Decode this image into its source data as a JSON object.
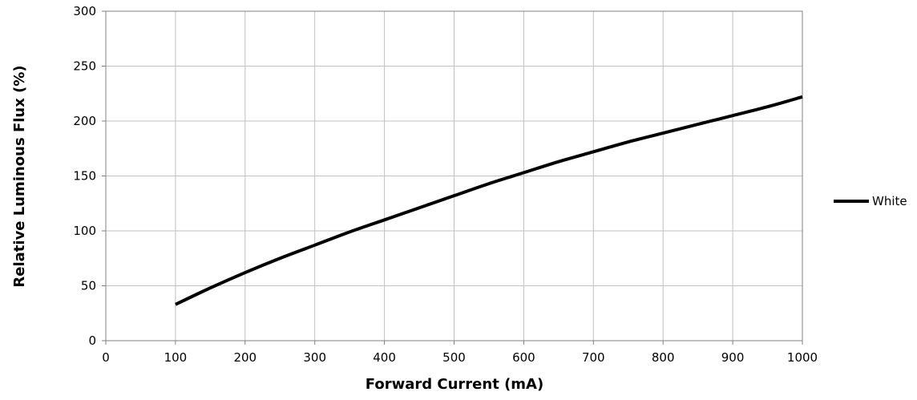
{
  "chart_data": {
    "type": "line",
    "title": "",
    "xlabel": "Forward Current (mA)",
    "ylabel": "Relative Luminous Flux (%)",
    "xlim": [
      0,
      1000
    ],
    "ylim": [
      0,
      300
    ],
    "xticks": [
      0,
      100,
      200,
      300,
      400,
      500,
      600,
      700,
      800,
      900,
      1000
    ],
    "yticks": [
      0,
      50,
      100,
      150,
      200,
      250,
      300
    ],
    "grid": true,
    "legend_position": "right",
    "series": [
      {
        "name": "White",
        "color": "#000000",
        "x": [
          100,
          150,
          200,
          250,
          300,
          350,
          400,
          450,
          500,
          550,
          600,
          650,
          700,
          750,
          800,
          850,
          900,
          950,
          1000
        ],
        "y": [
          33,
          48,
          62,
          75,
          87,
          99,
          110,
          121,
          132,
          143,
          153,
          163,
          172,
          181,
          189,
          197,
          205,
          213,
          222
        ]
      }
    ]
  }
}
